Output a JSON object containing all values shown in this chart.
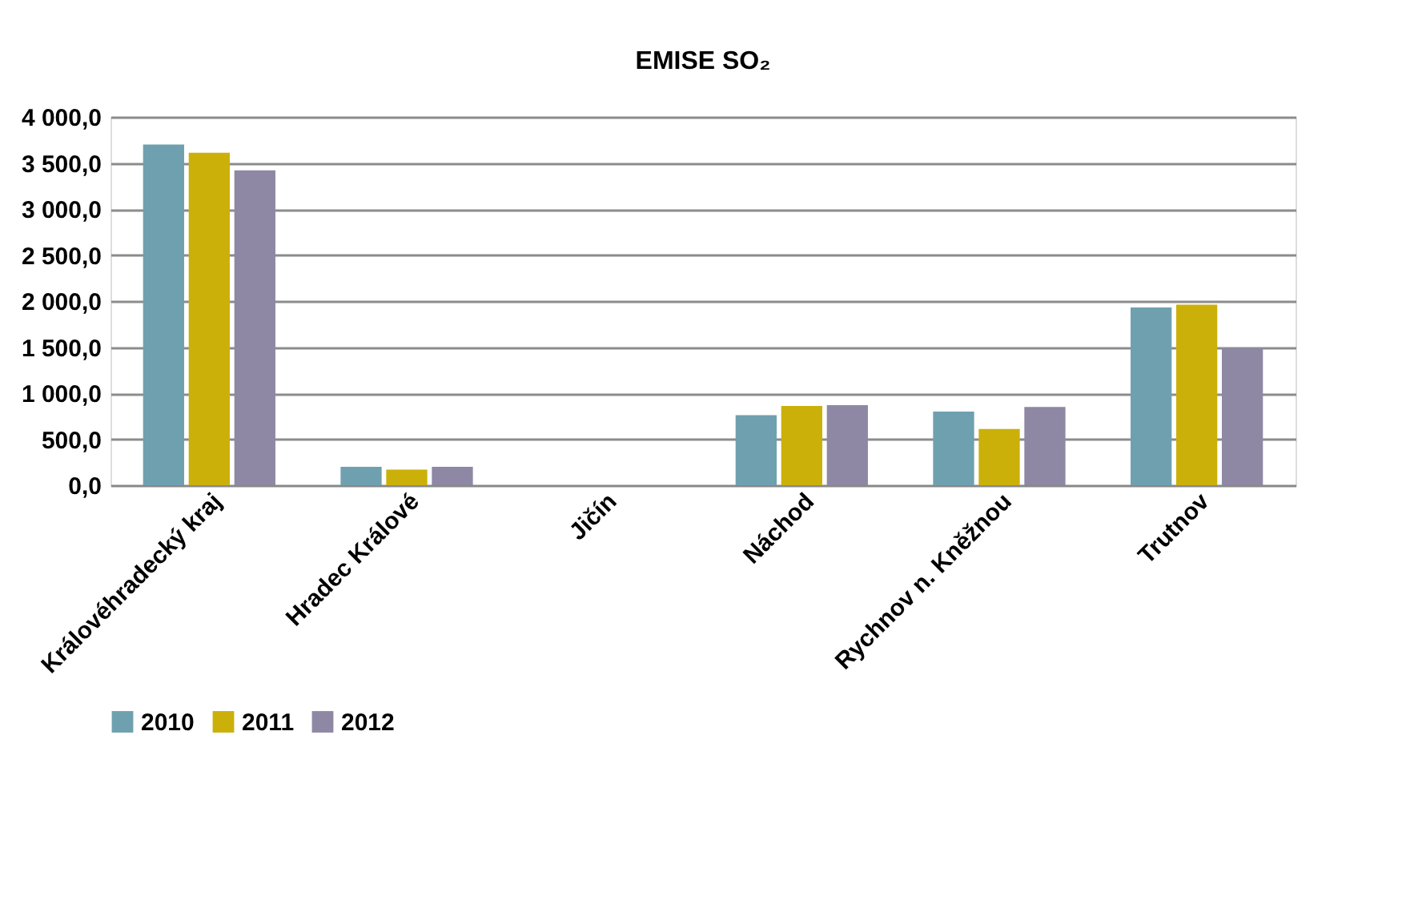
{
  "chart_data": {
    "type": "bar",
    "title": "EMISE SO₂",
    "categories": [
      "Královéhradecký kraj",
      "Hradec Králové",
      "Jičín",
      "Náchod",
      "Rychnov n. Kněžnou",
      "Trutnov"
    ],
    "series": [
      {
        "name": "2010",
        "color": "#6fa0b0",
        "values": [
          3700,
          200,
          null,
          760,
          800,
          1930
        ]
      },
      {
        "name": "2011",
        "color": "#cbb00a",
        "values": [
          3610,
          170,
          null,
          860,
          610,
          1960
        ]
      },
      {
        "name": "2012",
        "color": "#8e88a4",
        "values": [
          3420,
          200,
          null,
          870,
          850,
          1490
        ]
      }
    ],
    "ylim": [
      0,
      4000
    ],
    "yticks": [
      {
        "value": 0,
        "label": "0,0"
      },
      {
        "value": 500,
        "label": "500,0"
      },
      {
        "value": 1000,
        "label": "1 000,0"
      },
      {
        "value": 1500,
        "label": "1 500,0"
      },
      {
        "value": 2000,
        "label": "2 000,0"
      },
      {
        "value": 2500,
        "label": "2 500,0"
      },
      {
        "value": 3000,
        "label": "3 000,0"
      },
      {
        "value": 3500,
        "label": "3 500,0"
      },
      {
        "value": 4000,
        "label": "4 000,0"
      }
    ],
    "grid": "y",
    "legend": "bottom"
  }
}
